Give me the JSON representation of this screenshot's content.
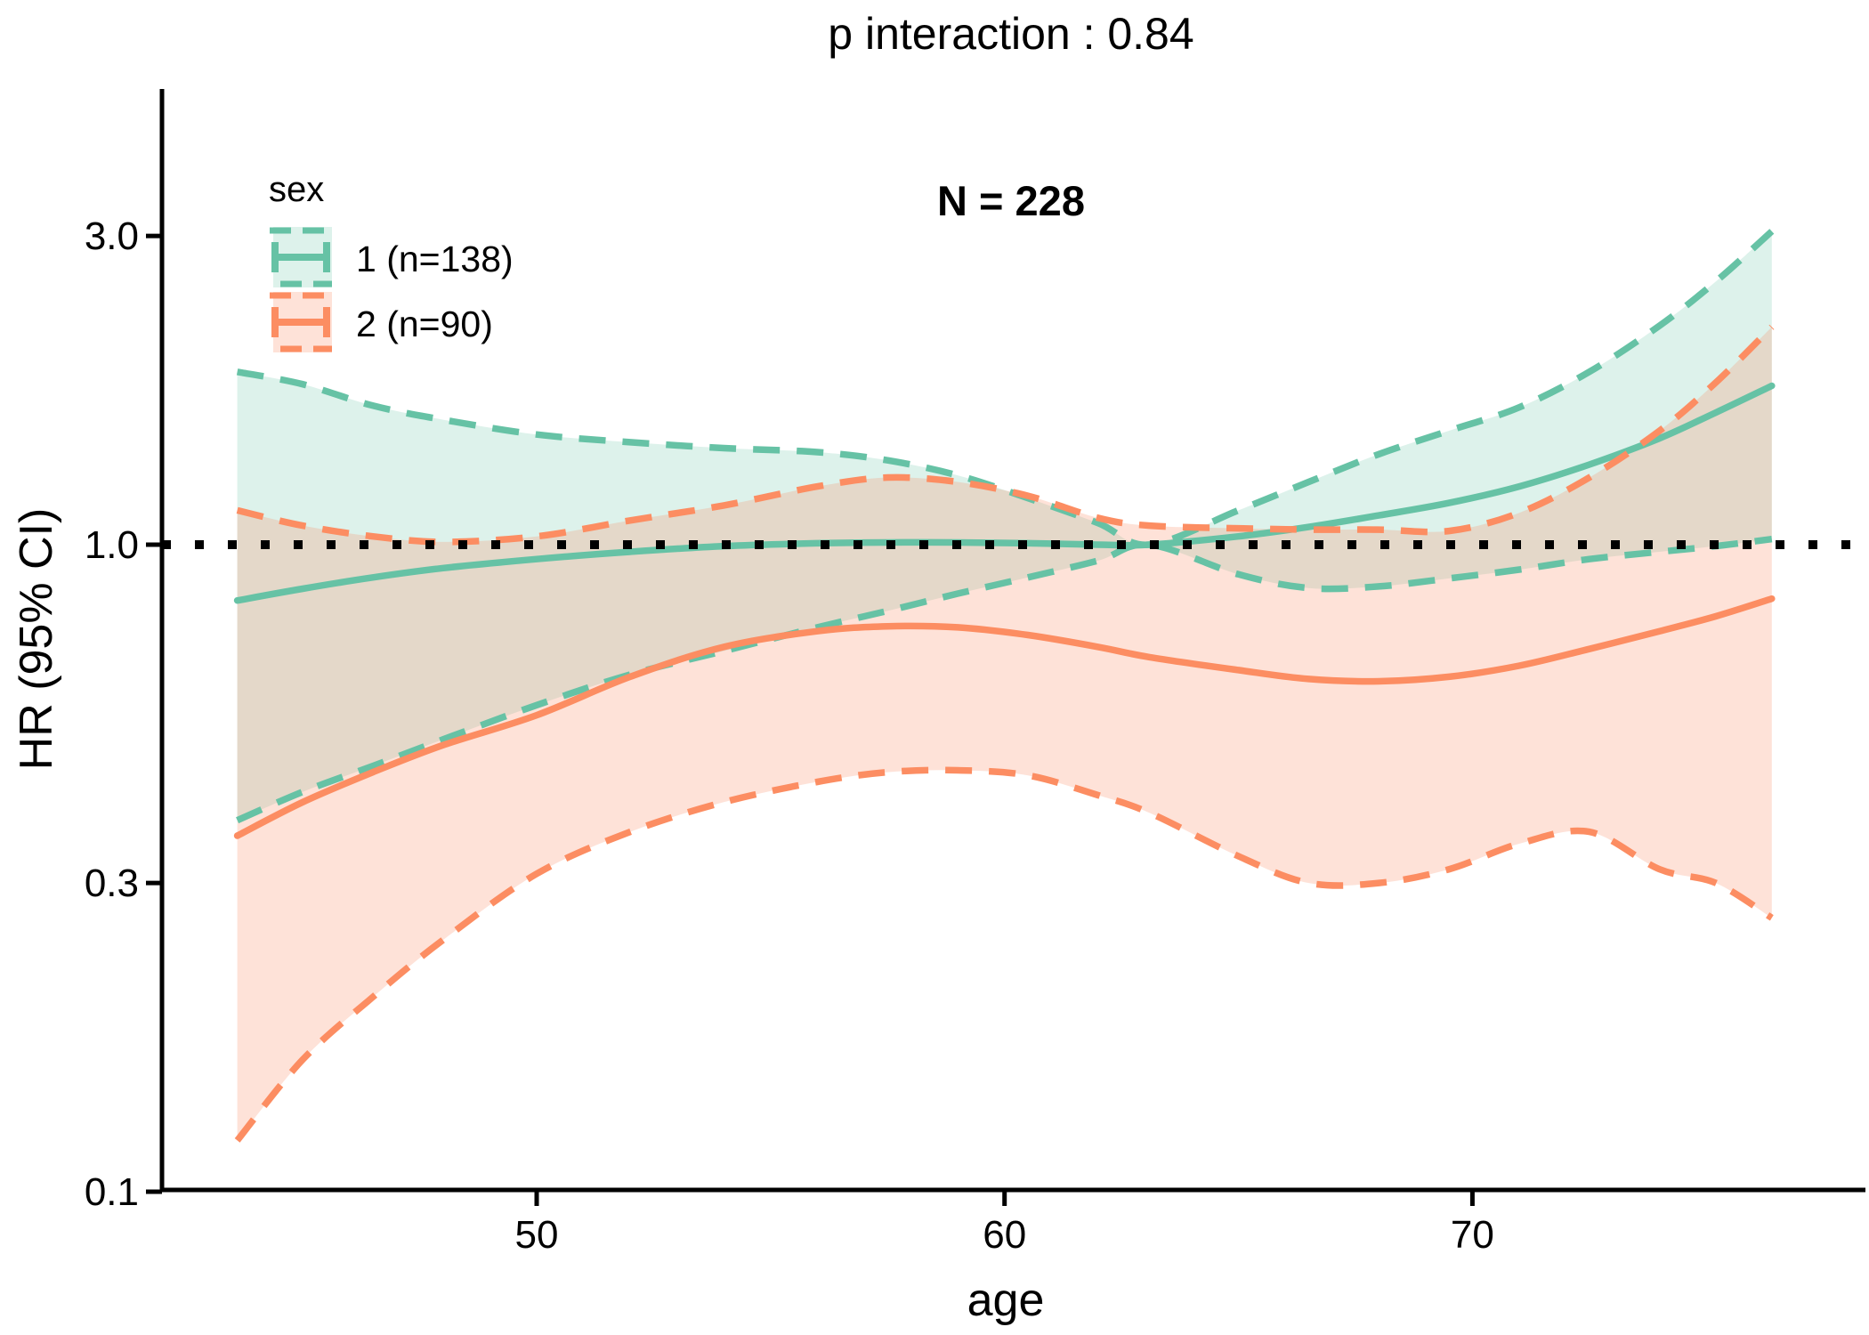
{
  "title": "p interaction : 0.84",
  "annotation": "N = 228",
  "legend": {
    "title": "sex",
    "entries": [
      {
        "label": "1 (n=138)",
        "color": "#66C2A5",
        "n": 138
      },
      {
        "label": "2 (n=90)",
        "color": "#FC8D62",
        "n": 90
      }
    ]
  },
  "axes": {
    "x": {
      "label": "age",
      "ticks": [
        "50",
        "60",
        "70"
      ],
      "tick_values": [
        50,
        60,
        70
      ],
      "range": [
        42,
        78.3
      ]
    },
    "y": {
      "label": "HR (95% CI)",
      "ticks": [
        "3.0",
        "1.0",
        "0.3",
        "0.1"
      ],
      "tick_values": [
        3.0,
        1.0,
        0.3,
        0.1
      ],
      "scale": "log10"
    }
  },
  "reference_line": {
    "y": 1.0,
    "style": "dotted",
    "color": "#000000"
  },
  "colors": {
    "sex1": "#66C2A5",
    "sex2": "#FC8D62",
    "sex1_fill_opacity": 0.22,
    "sex2_fill_opacity": 0.25,
    "axis": "#000000"
  },
  "chart_data": {
    "type": "line",
    "title": "p interaction : 0.84",
    "subtitle": "N = 228",
    "xlabel": "age",
    "ylabel": "HR (95% CI)",
    "y_scale": "log10",
    "x_ticks": [
      50,
      60,
      70
    ],
    "y_ticks": [
      3.0,
      1.0,
      0.3,
      0.1
    ],
    "reference_line": 1.0,
    "x": [
      43.6,
      45,
      46.5,
      48,
      50,
      52,
      54,
      56,
      57.5,
      59,
      60.5,
      62,
      63.1,
      65,
      66.5,
      68,
      69.5,
      71,
      72.5,
      74,
      75.2,
      76.4
    ],
    "series": [
      {
        "name": "1 (n=138)",
        "group": "sex=1",
        "color": "#66C2A5",
        "est": [
          0.82,
          0.855,
          0.89,
          0.92,
          0.95,
          0.975,
          0.995,
          1.005,
          1.008,
          1.008,
          1.005,
          1.0,
          1.0,
          1.03,
          1.065,
          1.11,
          1.16,
          1.23,
          1.33,
          1.46,
          1.6,
          1.76
        ],
        "lower": [
          0.375,
          0.415,
          0.455,
          0.5,
          0.565,
          0.63,
          0.685,
          0.745,
          0.79,
          0.84,
          0.89,
          0.945,
          1.0,
          0.9,
          0.857,
          0.862,
          0.887,
          0.915,
          0.95,
          0.975,
          0.995,
          1.02
        ],
        "upper": [
          1.85,
          1.77,
          1.64,
          1.56,
          1.48,
          1.44,
          1.41,
          1.39,
          1.35,
          1.28,
          1.18,
          1.08,
          1.0,
          1.13,
          1.25,
          1.38,
          1.5,
          1.63,
          1.85,
          2.18,
          2.55,
          3.05
        ]
      },
      {
        "name": "2 (n=90)",
        "group": "sex=2",
        "color": "#FC8D62",
        "est": [
          0.355,
          0.4,
          0.445,
          0.49,
          0.545,
          0.625,
          0.695,
          0.735,
          0.748,
          0.745,
          0.725,
          0.695,
          0.67,
          0.64,
          0.62,
          0.615,
          0.625,
          0.65,
          0.69,
          0.735,
          0.775,
          0.825
        ],
        "lower": [
          0.12,
          0.16,
          0.2,
          0.245,
          0.31,
          0.36,
          0.4,
          0.43,
          0.445,
          0.448,
          0.44,
          0.41,
          0.385,
          0.33,
          0.3,
          0.3,
          0.315,
          0.345,
          0.36,
          0.315,
          0.3,
          0.265
        ],
        "upper": [
          1.13,
          1.07,
          1.03,
          1.01,
          1.03,
          1.09,
          1.15,
          1.23,
          1.27,
          1.25,
          1.19,
          1.1,
          1.07,
          1.06,
          1.055,
          1.055,
          1.05,
          1.12,
          1.27,
          1.5,
          1.78,
          2.17
        ]
      }
    ]
  }
}
